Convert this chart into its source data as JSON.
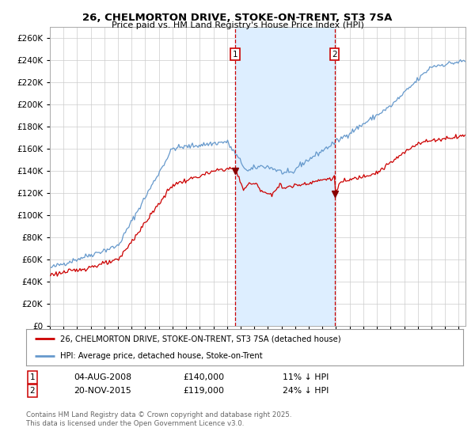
{
  "title_line1": "26, CHELMORTON DRIVE, STOKE-ON-TRENT, ST3 7SA",
  "title_line2": "Price paid vs. HM Land Registry's House Price Index (HPI)",
  "legend_label_red": "26, CHELMORTON DRIVE, STOKE-ON-TRENT, ST3 7SA (detached house)",
  "legend_label_blue": "HPI: Average price, detached house, Stoke-on-Trent",
  "annotation1_label": "1",
  "annotation1_date": "04-AUG-2008",
  "annotation1_price": "£140,000",
  "annotation1_hpi": "11% ↓ HPI",
  "annotation2_label": "2",
  "annotation2_date": "20-NOV-2015",
  "annotation2_price": "£119,000",
  "annotation2_hpi": "24% ↓ HPI",
  "footer": "Contains HM Land Registry data © Crown copyright and database right 2025.\nThis data is licensed under the Open Government Licence v3.0.",
  "sale1_date_num": 2008.58,
  "sale1_price": 140000,
  "sale2_date_num": 2015.89,
  "sale2_price": 119000,
  "red_color": "#cc0000",
  "blue_color": "#6699cc",
  "shade_color": "#ddeeff",
  "dashed_color": "#cc0000",
  "grid_color": "#cccccc",
  "bg_color": "#ffffff",
  "ylim_max": 270000,
  "ytick_step": 20000,
  "xmin": 1995,
  "xmax": 2025.5
}
